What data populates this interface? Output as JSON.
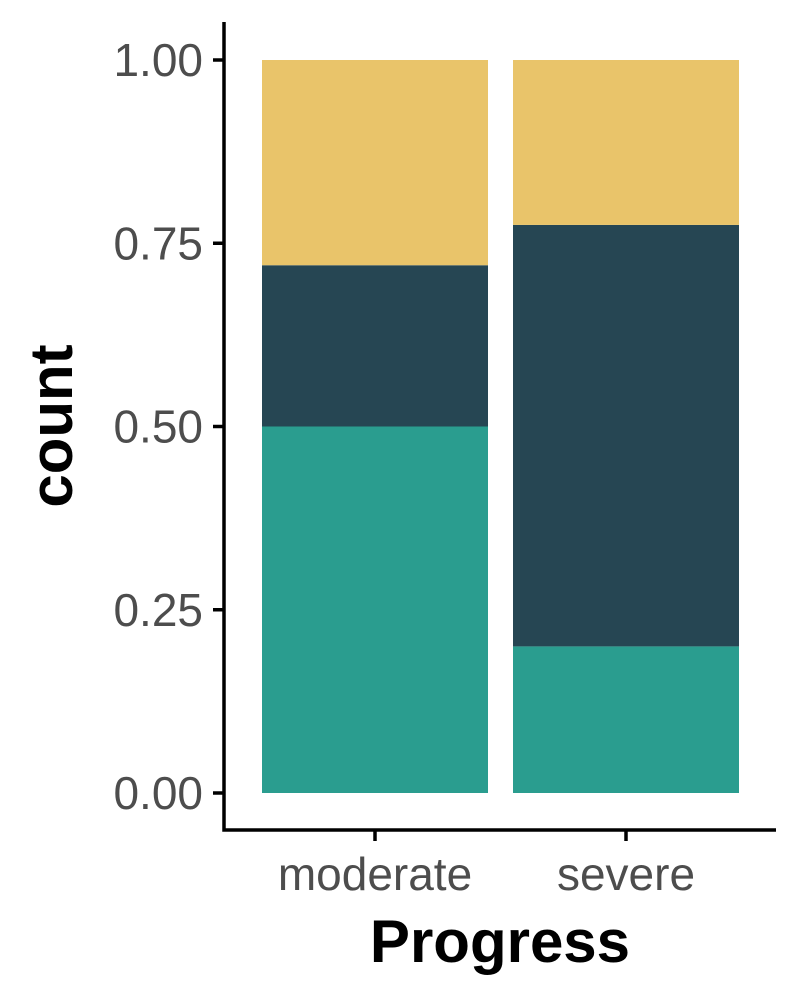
{
  "chart_data": {
    "type": "bar",
    "stacked": true,
    "position": "fill",
    "categories": [
      "moderate",
      "severe"
    ],
    "series": [
      {
        "color": "#E9C46A",
        "values": [
          0.28,
          0.225
        ]
      },
      {
        "color": "#264653",
        "values": [
          0.22,
          0.575
        ]
      },
      {
        "color": "#2A9D8F",
        "values": [
          0.5,
          0.2
        ]
      }
    ],
    "stack_order_bottom_to_top": [
      2,
      1,
      0
    ],
    "xlabel": "Progress",
    "ylabel": "count",
    "ylim": [
      0,
      1
    ],
    "yticks": [
      "0.00",
      "0.25",
      "0.50",
      "0.75",
      "1.00"
    ],
    "ytick_values": [
      0,
      0.25,
      0.5,
      0.75,
      1.0
    ],
    "grid": false,
    "legend": "none"
  }
}
